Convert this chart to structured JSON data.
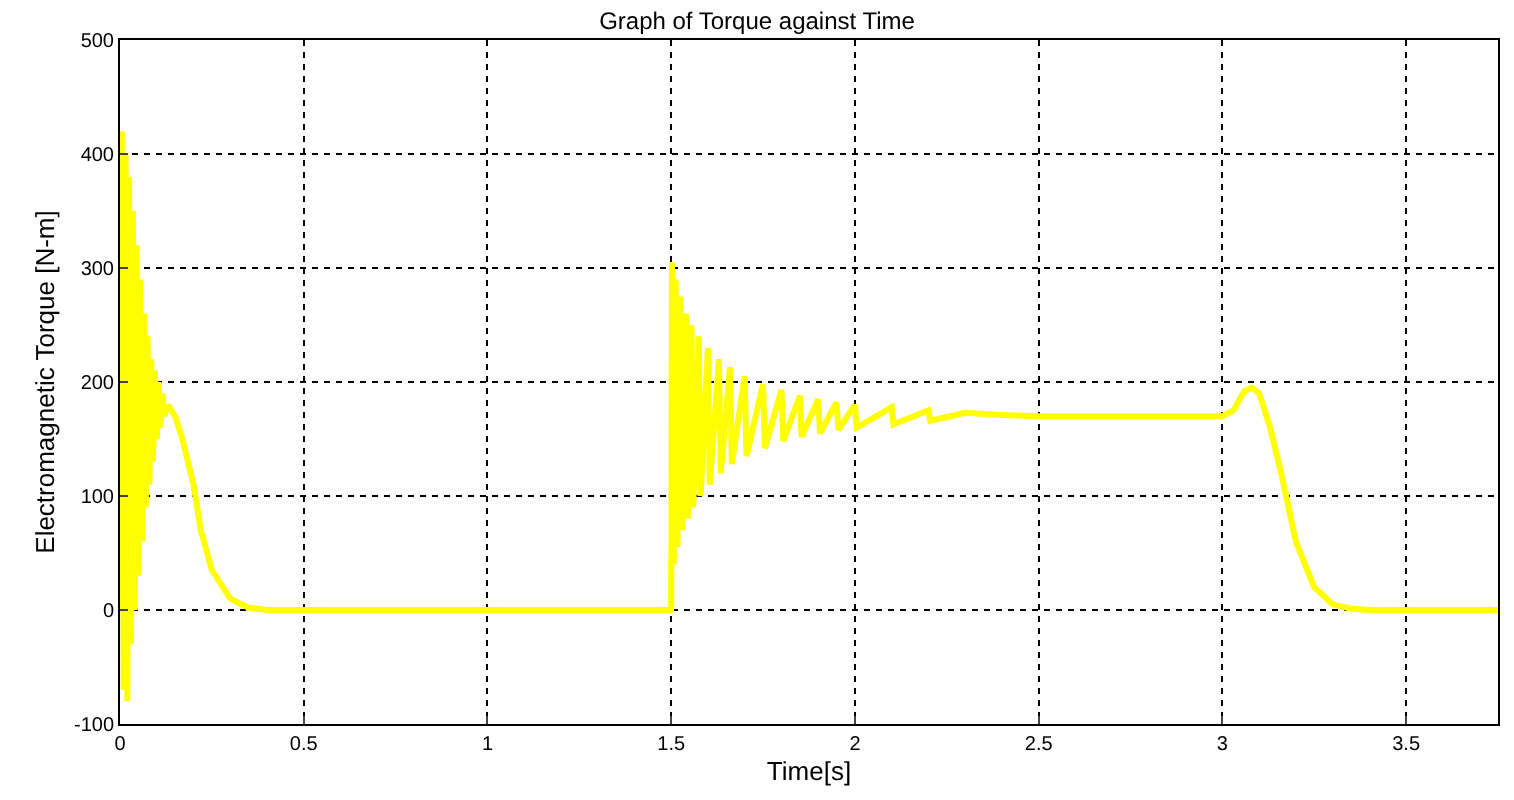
{
  "chart_data": {
    "type": "line",
    "title": "Graph of Torque against Time",
    "xlabel": "Time[s]",
    "ylabel": "Electromagnetic Torque [N-m]",
    "series": [
      {
        "color": "#ffff00",
        "x": [
          0,
          0.005,
          0.01,
          0.015,
          0.02,
          0.025,
          0.03,
          0.035,
          0.04,
          0.045,
          0.05,
          0.055,
          0.06,
          0.065,
          0.07,
          0.075,
          0.08,
          0.085,
          0.09,
          0.095,
          0.1,
          0.105,
          0.11,
          0.115,
          0.12,
          0.13,
          0.14,
          0.15,
          0.17,
          0.2,
          0.22,
          0.25,
          0.3,
          0.35,
          0.4,
          1.5,
          1.502,
          1.507,
          1.512,
          1.517,
          1.525,
          1.53,
          1.54,
          1.545,
          1.555,
          1.56,
          1.575,
          1.58,
          1.6,
          1.605,
          1.63,
          1.635,
          1.66,
          1.665,
          1.7,
          1.705,
          1.75,
          1.755,
          1.8,
          1.805,
          1.85,
          1.855,
          1.9,
          1.905,
          1.95,
          1.955,
          2.0,
          2.005,
          2.1,
          2.105,
          2.2,
          2.205,
          2.3,
          2.4,
          2.5,
          3.0,
          3.03,
          3.06,
          3.08,
          3.1,
          3.13,
          3.16,
          3.2,
          3.25,
          3.3,
          3.35,
          3.4,
          3.75
        ],
        "values": [
          0,
          420,
          -70,
          400,
          -80,
          380,
          -30,
          350,
          0,
          320,
          30,
          290,
          60,
          260,
          90,
          240,
          110,
          220,
          130,
          210,
          150,
          200,
          160,
          190,
          170,
          180,
          175,
          170,
          150,
          110,
          70,
          35,
          10,
          2,
          0,
          0,
          305,
          40,
          290,
          55,
          275,
          70,
          260,
          80,
          250,
          90,
          240,
          100,
          230,
          110,
          220,
          120,
          213,
          128,
          205,
          135,
          198,
          142,
          193,
          148,
          188,
          152,
          185,
          155,
          182,
          158,
          180,
          160,
          178,
          163,
          175,
          166,
          173,
          171,
          170,
          170,
          175,
          192,
          195,
          190,
          160,
          120,
          60,
          20,
          5,
          1,
          0,
          0
        ]
      }
    ],
    "xlim": [
      0,
      3.75
    ],
    "xticks": [
      0,
      0.5,
      1,
      1.5,
      2,
      2.5,
      3,
      3.5
    ],
    "ylim": [
      -100,
      500
    ],
    "yticks": [
      -100,
      0,
      100,
      200,
      300,
      400,
      500
    ],
    "grid": true,
    "marker": "none",
    "line_style": "solid"
  }
}
